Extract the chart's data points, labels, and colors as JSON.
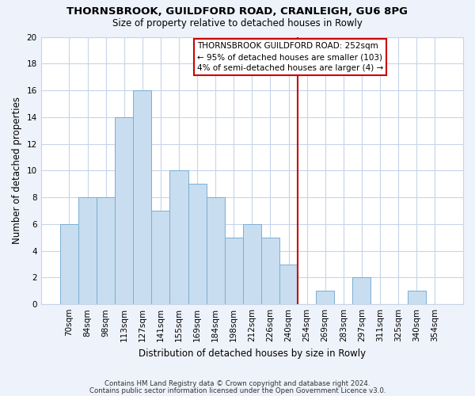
{
  "title": "THORNSBROOK, GUILDFORD ROAD, CRANLEIGH, GU6 8PG",
  "subtitle": "Size of property relative to detached houses in Rowly",
  "xlabel": "Distribution of detached houses by size in Rowly",
  "ylabel": "Number of detached properties",
  "bar_labels": [
    "70sqm",
    "84sqm",
    "98sqm",
    "113sqm",
    "127sqm",
    "141sqm",
    "155sqm",
    "169sqm",
    "184sqm",
    "198sqm",
    "212sqm",
    "226sqm",
    "240sqm",
    "254sqm",
    "269sqm",
    "283sqm",
    "297sqm",
    "311sqm",
    "325sqm",
    "340sqm",
    "354sqm"
  ],
  "bar_values": [
    6,
    8,
    8,
    14,
    16,
    7,
    10,
    9,
    8,
    5,
    6,
    5,
    3,
    0,
    1,
    0,
    2,
    0,
    0,
    1,
    0
  ],
  "bar_color": "#c8ddf0",
  "bar_edgecolor": "#7bafd4",
  "vline_color": "#cc0000",
  "vline_pos": 13,
  "ylim": [
    0,
    20
  ],
  "yticks": [
    0,
    2,
    4,
    6,
    8,
    10,
    12,
    14,
    16,
    18,
    20
  ],
  "annotation_title": "THORNSBROOK GUILDFORD ROAD: 252sqm",
  "annotation_line1": "← 95% of detached houses are smaller (103)",
  "annotation_line2": "4% of semi-detached houses are larger (4) →",
  "footer_line1": "Contains HM Land Registry data © Crown copyright and database right 2024.",
  "footer_line2": "Contains public sector information licensed under the Open Government Licence v3.0.",
  "background_color": "#eef2fb",
  "grid_color": "#c8d4e8",
  "plot_bg_color": "#ffffff"
}
